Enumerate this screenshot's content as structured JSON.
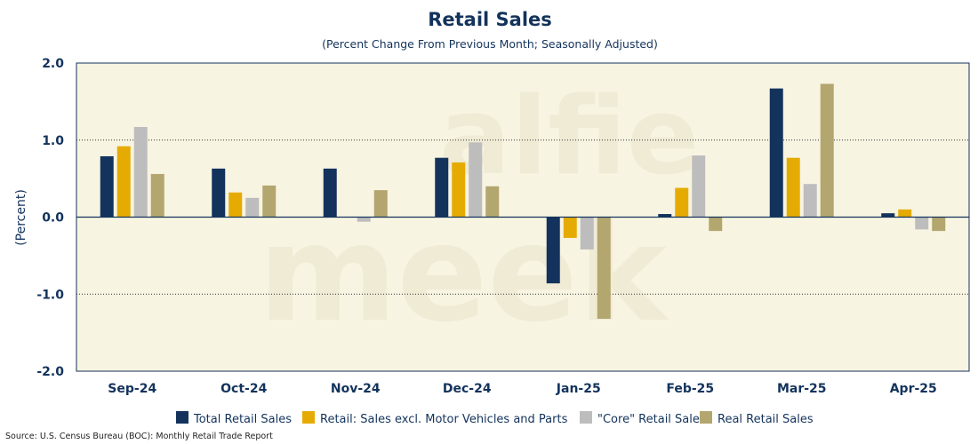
{
  "chart_data": {
    "type": "bar",
    "title": "Retail Sales",
    "subtitle": "(Percent Change From Previous Month; Seasonally Adjusted)",
    "ylabel": "(Percent)",
    "xlabel": "",
    "ylim": [
      -2.0,
      2.0
    ],
    "yticks": [
      2.0,
      1.0,
      0.0,
      -1.0,
      -2.0
    ],
    "ytick_labels": [
      "2.0",
      "1.0",
      "0.0",
      "-1.0",
      "-2.0"
    ],
    "grid": "dotted horizontal",
    "legend_position": "bottom",
    "categories": [
      "Sep-24",
      "Oct-24",
      "Nov-24",
      "Dec-24",
      "Jan-25",
      "Feb-25",
      "Mar-25",
      "Apr-25"
    ],
    "series": [
      {
        "name": "Total Retail Sales",
        "color": "#13335c",
        "values": [
          0.79,
          0.63,
          0.63,
          0.77,
          -0.86,
          0.04,
          1.67,
          0.05
        ]
      },
      {
        "name": "Retail: Sales excl. Motor Vehicles and Parts",
        "color": "#e6ab02",
        "values": [
          0.92,
          0.32,
          0.0,
          0.71,
          -0.27,
          0.38,
          0.77,
          0.1
        ]
      },
      {
        "name": "\"Core\" Retail Sales",
        "color": "#bdbdbd",
        "values": [
          1.17,
          0.25,
          -0.06,
          0.97,
          -0.42,
          0.8,
          0.43,
          -0.16
        ]
      },
      {
        "name": "Real Retail Sales",
        "color": "#b3a66e",
        "values": [
          0.56,
          0.41,
          0.35,
          0.4,
          -1.32,
          -0.18,
          1.73,
          -0.18
        ]
      }
    ],
    "plot_background": "#f8f4e2",
    "watermark": [
      "alfie",
      "meek"
    ],
    "source": "Source: U.S. Census Bureau (BOC): Monthly Retail Trade Report"
  }
}
